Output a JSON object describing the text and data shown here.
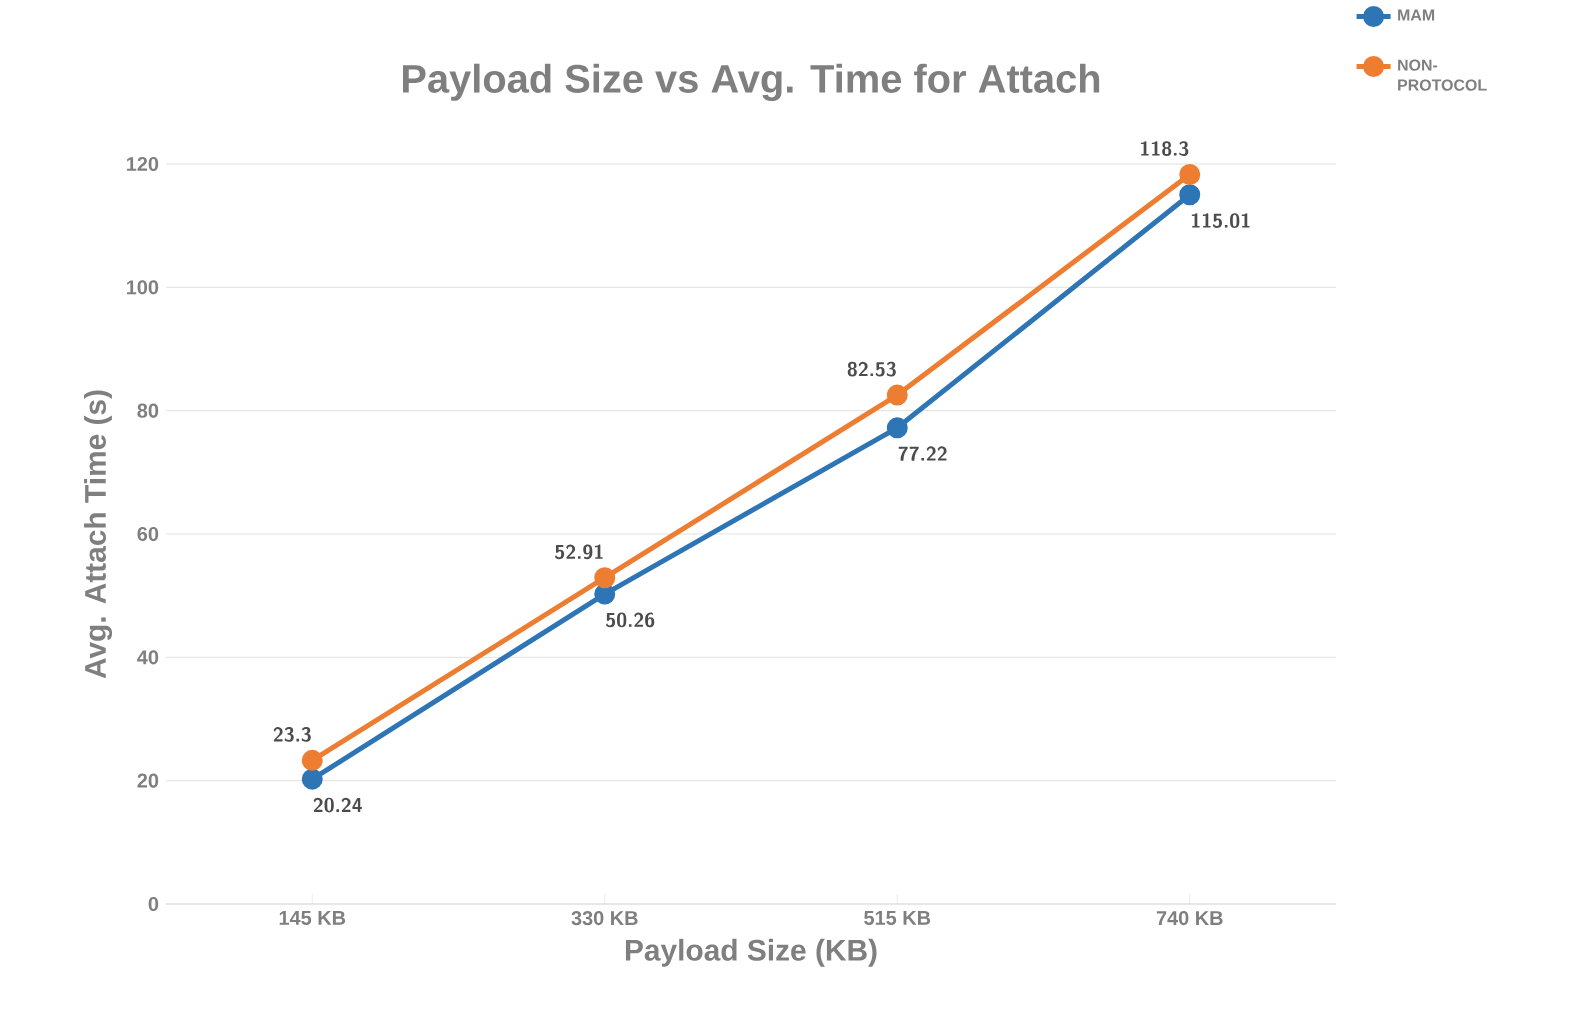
{
  "chart_data": {
    "type": "line",
    "title": "Payload Size vs Avg. Time for Attach",
    "xlabel": "Payload Size (KB)",
    "ylabel": "Avg. Attach Time (s)",
    "categories": [
      "145 KB",
      "330 KB",
      "515 KB",
      "740 KB"
    ],
    "series": [
      {
        "name": "MAM",
        "color": "#2e75b6",
        "values": [
          20.24,
          50.26,
          77.22,
          115.01
        ]
      },
      {
        "name": "NON-PROTOCOL",
        "color": "#ed7d31",
        "values": [
          23.3,
          52.91,
          82.53,
          118.3
        ]
      }
    ],
    "ylim": [
      0,
      120
    ],
    "yticks": [
      0,
      20,
      40,
      60,
      80,
      100,
      120
    ],
    "grid": "y",
    "legend": "top right",
    "marker": "circle",
    "line_style": "solid",
    "data_labels": true
  }
}
